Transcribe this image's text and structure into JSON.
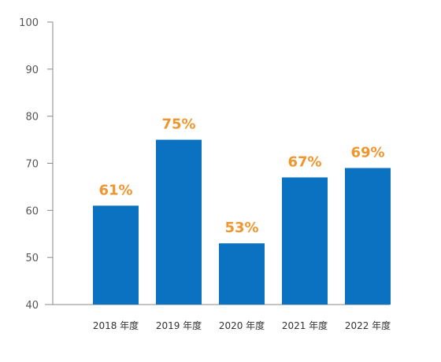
{
  "chart_data": {
    "type": "bar",
    "categories": [
      "2018 年度",
      "2019 年度",
      "2020 年度",
      "2021 年度",
      "2022 年度"
    ],
    "values": [
      61,
      75,
      53,
      67,
      69
    ],
    "value_labels": [
      "61%",
      "75%",
      "53%",
      "67%",
      "69%"
    ],
    "ylim": [
      40,
      100
    ],
    "yticks": [
      40,
      50,
      60,
      70,
      80,
      90,
      100
    ],
    "title": "",
    "xlabel": "",
    "ylabel": "",
    "grid": false,
    "colors": {
      "bar": "#0a72c1",
      "label": "#f0962e",
      "axis": "#888888"
    }
  }
}
